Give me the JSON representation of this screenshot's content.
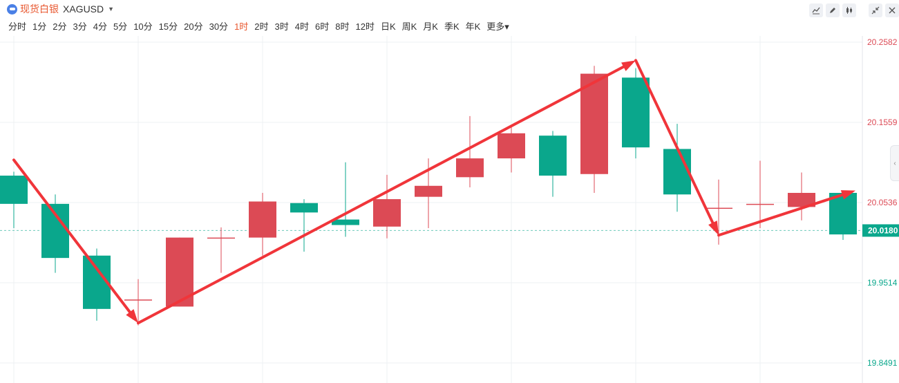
{
  "instrument": {
    "name": "现货白银",
    "code": "XAGUSD"
  },
  "periods": [
    "分时",
    "1分",
    "2分",
    "3分",
    "4分",
    "5分",
    "10分",
    "15分",
    "20分",
    "30分",
    "1时",
    "2时",
    "3时",
    "4时",
    "6时",
    "8时",
    "12时",
    "日K",
    "周K",
    "月K",
    "季K",
    "年K",
    "更多"
  ],
  "active_period": "1时",
  "toolbar": [
    "line-tool-icon",
    "pencil-icon",
    "candle-settings-icon",
    "collapse-icon",
    "close-icon"
  ],
  "colors": {
    "up": "#dc4a55",
    "down": "#0aa78c",
    "arrow": "#f0353a",
    "accent": "#e8572f"
  },
  "chart_data": {
    "type": "candlestick",
    "y_ticks": [
      "20.2582",
      "20.1559",
      "20.0536",
      "19.9514",
      "19.8491"
    ],
    "ylim": [
      19.8491,
      20.2582
    ],
    "current_price": "20.0180",
    "candles": [
      {
        "o": 20.088,
        "c": 20.052,
        "h": 20.093,
        "l": 20.021
      },
      {
        "o": 20.052,
        "c": 19.983,
        "h": 20.064,
        "l": 19.964
      },
      {
        "o": 19.986,
        "c": 19.918,
        "h": 19.995,
        "l": 19.903
      },
      {
        "o": 19.93,
        "c": 19.93,
        "h": 19.956,
        "l": 19.897
      },
      {
        "o": 19.921,
        "c": 20.009,
        "h": 20.009,
        "l": 19.921
      },
      {
        "o": 20.009,
        "c": 20.009,
        "h": 20.022,
        "l": 19.964
      },
      {
        "o": 20.009,
        "c": 20.055,
        "h": 20.066,
        "l": 19.986
      },
      {
        "o": 20.053,
        "c": 20.041,
        "h": 20.058,
        "l": 19.991
      },
      {
        "o": 20.032,
        "c": 20.025,
        "h": 20.105,
        "l": 20.01
      },
      {
        "o": 20.023,
        "c": 20.058,
        "h": 20.089,
        "l": 20.008
      },
      {
        "o": 20.061,
        "c": 20.075,
        "h": 20.11,
        "l": 20.021
      },
      {
        "o": 20.086,
        "c": 20.11,
        "h": 20.164,
        "l": 20.073
      },
      {
        "o": 20.11,
        "c": 20.142,
        "h": 20.152,
        "l": 20.092
      },
      {
        "o": 20.139,
        "c": 20.088,
        "h": 20.145,
        "l": 20.061
      },
      {
        "o": 20.09,
        "c": 20.218,
        "h": 20.228,
        "l": 20.066
      },
      {
        "o": 20.213,
        "c": 20.124,
        "h": 20.225,
        "l": 20.11
      },
      {
        "o": 20.122,
        "c": 20.064,
        "h": 20.154,
        "l": 20.042
      },
      {
        "o": 20.047,
        "c": 20.047,
        "h": 20.083,
        "l": 20.0
      },
      {
        "o": 20.052,
        "c": 20.052,
        "h": 20.107,
        "l": 20.021
      },
      {
        "o": 20.048,
        "c": 20.066,
        "h": 20.092,
        "l": 20.031
      },
      {
        "o": 20.066,
        "c": 20.013,
        "h": 20.069,
        "l": 20.006
      }
    ],
    "arrows": [
      {
        "from": [
          0,
          20.108
        ],
        "to": [
          3,
          19.9
        ]
      },
      {
        "from": [
          3,
          19.9
        ],
        "to": [
          15,
          20.235
        ]
      },
      {
        "from": [
          15,
          20.235
        ],
        "to": [
          17,
          20.012
        ]
      },
      {
        "from": [
          17,
          20.012
        ],
        "to": [
          20.3,
          20.069
        ]
      }
    ]
  }
}
